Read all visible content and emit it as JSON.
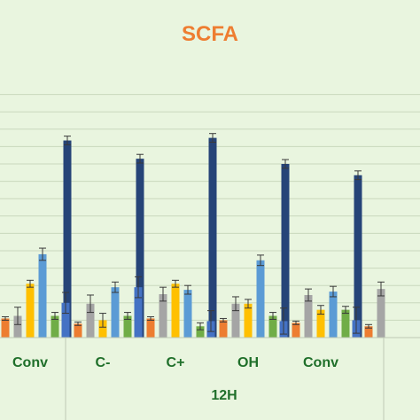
{
  "chart_data": {
    "type": "bar",
    "title": "SCFA",
    "xlabel": "",
    "ylabel": "",
    "ylim": [
      0,
      30
    ],
    "grid": true,
    "colors": [
      "#4472c4",
      "#ed7d31",
      "#a5a5a5",
      "#ffc000",
      "#5b9bd5",
      "#70ad47",
      "#264478"
    ],
    "groups": [
      {
        "label": "12H",
        "categories": [
          "Conv",
          "C-",
          "C+",
          "OH",
          "Conv"
        ]
      }
    ],
    "categories": [
      "",
      "Conv",
      "C-",
      "C+",
      "OH",
      "Conv",
      ""
    ],
    "series": [
      {
        "values": [
          null,
          null,
          4.0,
          5.8,
          1.9,
          1.9,
          2.0
        ],
        "errors": [
          null,
          null,
          1.2,
          1.2,
          1.2,
          1.5,
          1.5
        ]
      },
      {
        "values": [
          2.2,
          2.2,
          1.6,
          2.2,
          2.0,
          1.7,
          1.3
        ],
        "errors": [
          0.2,
          0.2,
          0.2,
          0.2,
          0.2,
          0.2,
          0.2
        ]
      },
      {
        "values": [
          null,
          2.5,
          3.9,
          5.0,
          3.9,
          4.9,
          5.6
        ],
        "errors": [
          null,
          1.0,
          1.0,
          0.8,
          0.8,
          0.7,
          0.8
        ]
      },
      {
        "values": [
          null,
          6.2,
          2.0,
          6.2,
          3.9,
          3.2,
          null
        ],
        "errors": [
          null,
          0.4,
          0.8,
          0.4,
          0.5,
          0.5,
          null
        ]
      },
      {
        "values": [
          null,
          9.6,
          5.8,
          5.5,
          8.9,
          5.3,
          null
        ],
        "errors": [
          null,
          0.7,
          0.6,
          0.5,
          0.6,
          0.6,
          null
        ]
      },
      {
        "values": [
          null,
          2.5,
          2.5,
          1.3,
          2.5,
          3.2,
          null
        ],
        "errors": [
          null,
          0.4,
          0.4,
          0.4,
          0.4,
          0.4,
          null
        ]
      },
      {
        "values": [
          null,
          22.7,
          20.6,
          23.0,
          20.0,
          18.7,
          null
        ],
        "errors": [
          null,
          0.5,
          0.5,
          0.5,
          0.5,
          0.5,
          null
        ]
      }
    ]
  }
}
